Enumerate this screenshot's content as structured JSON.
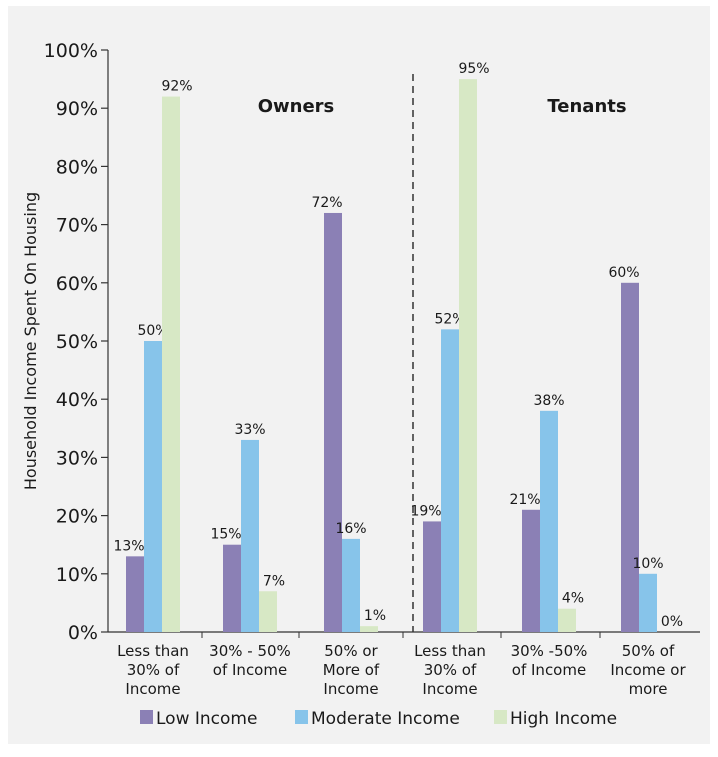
{
  "chart_data": {
    "type": "bar",
    "ylabel": "Household Income Spent On Housing",
    "ylim": [
      0,
      100
    ],
    "yticks": [
      0,
      10,
      20,
      30,
      40,
      50,
      60,
      70,
      80,
      90,
      100
    ],
    "ytick_suffix": "%",
    "groups": [
      {
        "label": "Owners",
        "categories": [
          [
            "Less than",
            "30% of",
            "Income"
          ],
          [
            "30% - 50%",
            "of Income"
          ],
          [
            "50% or",
            "More of",
            "Income"
          ]
        ]
      },
      {
        "label": "Tenants",
        "categories": [
          [
            "Less than",
            "30% of",
            "Income"
          ],
          [
            "30% -50%",
            "of Income"
          ],
          [
            "50% of",
            "Income or",
            "more"
          ]
        ]
      }
    ],
    "series": [
      {
        "name": "Low Income",
        "color": "#8b80b5",
        "values": [
          13,
          15,
          72,
          19,
          21,
          60
        ]
      },
      {
        "name": "Moderate Income",
        "color": "#87c4ea",
        "values": [
          50,
          33,
          16,
          52,
          38,
          10
        ]
      },
      {
        "name": "High Income",
        "color": "#d7e8c5",
        "values": [
          92,
          7,
          1,
          95,
          4,
          0
        ]
      }
    ],
    "legend_position": "bottom",
    "grid": false,
    "divider": "dashed-between-groups"
  }
}
